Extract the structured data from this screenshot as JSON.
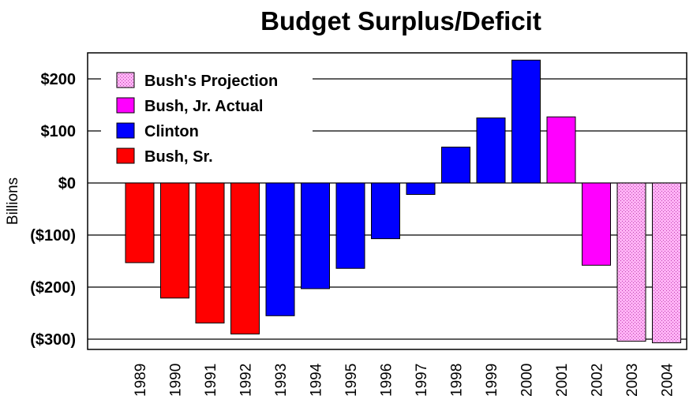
{
  "chart_data": {
    "type": "bar",
    "title": "Budget Surplus/Deficit",
    "xlabel": "",
    "ylabel": "Billions",
    "ylim": [
      -310,
      250
    ],
    "yticks": [
      200,
      100,
      0,
      -100,
      -200,
      -300
    ],
    "ytick_labels": [
      "$200",
      "$100",
      "$0",
      "($100)",
      "($200)",
      "($300)"
    ],
    "grid": true,
    "legend_position": "top-left",
    "categories": [
      "1989",
      "1990",
      "1991",
      "1992",
      "1993",
      "1994",
      "1995",
      "1996",
      "1997",
      "1998",
      "1999",
      "2000",
      "2001",
      "2002",
      "2003",
      "2004"
    ],
    "values": [
      -153,
      -221,
      -269,
      -290,
      -255,
      -203,
      -164,
      -107,
      -22,
      69,
      125,
      236,
      127,
      -158,
      -304,
      -307
    ],
    "series_assignment": [
      "Bush, Sr.",
      "Bush, Sr.",
      "Bush, Sr.",
      "Bush, Sr.",
      "Clinton",
      "Clinton",
      "Clinton",
      "Clinton",
      "Clinton",
      "Clinton",
      "Clinton",
      "Clinton",
      "Bush, Jr. Actual",
      "Bush, Jr. Actual",
      "Bush's Projection",
      "Bush's Projection"
    ],
    "series": [
      {
        "name": "Bush's Projection",
        "color": "#ffb3f5",
        "pattern": "dotted"
      },
      {
        "name": "Bush, Jr. Actual",
        "color": "#ff00ff"
      },
      {
        "name": "Clinton",
        "color": "#0000ff"
      },
      {
        "name": "Bush, Sr.",
        "color": "#ff0000"
      }
    ]
  }
}
